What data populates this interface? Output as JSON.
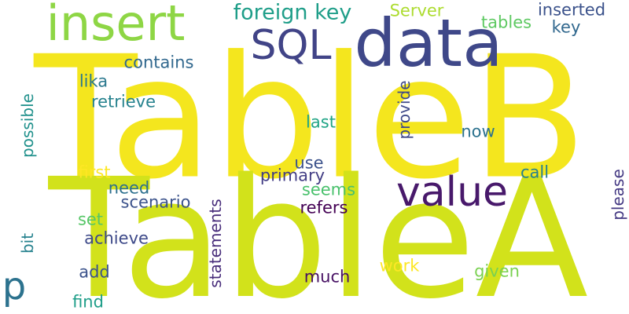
{
  "cloud": {
    "background": "#ffffff",
    "words": [
      {
        "text": "TableB",
        "color": "#f4e61e",
        "orientation": "horizontal"
      },
      {
        "text": "TableA",
        "color": "#d2e21b",
        "orientation": "horizontal"
      },
      {
        "text": "data",
        "color": "#3f4889",
        "orientation": "horizontal"
      },
      {
        "text": "insert",
        "color": "#8ed645",
        "orientation": "horizontal"
      },
      {
        "text": "value",
        "color": "#48196b",
        "orientation": "horizontal"
      },
      {
        "text": "SQL",
        "color": "#414487",
        "orientation": "horizontal"
      },
      {
        "text": "foreign key",
        "color": "#1f9e89",
        "orientation": "horizontal"
      },
      {
        "text": "p",
        "color": "#2c728e",
        "orientation": "horizontal"
      },
      {
        "text": "Server",
        "color": "#addc30",
        "orientation": "horizontal"
      },
      {
        "text": "inserted",
        "color": "#3b528b",
        "orientation": "horizontal"
      },
      {
        "text": "tables",
        "color": "#5ec962",
        "orientation": "horizontal"
      },
      {
        "text": "key",
        "color": "#31688e",
        "orientation": "horizontal"
      },
      {
        "text": "contains",
        "color": "#31688e",
        "orientation": "horizontal"
      },
      {
        "text": "lika",
        "color": "#2a788e",
        "orientation": "horizontal"
      },
      {
        "text": "retrieve",
        "color": "#26828e",
        "orientation": "horizontal"
      },
      {
        "text": "possible",
        "color": "#21918c",
        "orientation": "vertical"
      },
      {
        "text": "provide",
        "color": "#3e4989",
        "orientation": "vertical"
      },
      {
        "text": "last",
        "color": "#20a486",
        "orientation": "horizontal"
      },
      {
        "text": "now",
        "color": "#2c728e",
        "orientation": "horizontal"
      },
      {
        "text": "use",
        "color": "#3b528b",
        "orientation": "horizontal"
      },
      {
        "text": "first",
        "color": "#fde725",
        "orientation": "horizontal"
      },
      {
        "text": "primary",
        "color": "#433e85",
        "orientation": "horizontal"
      },
      {
        "text": "call",
        "color": "#27808e",
        "orientation": "horizontal"
      },
      {
        "text": "please",
        "color": "#443983",
        "orientation": "vertical"
      },
      {
        "text": "need",
        "color": "#2d708e",
        "orientation": "horizontal"
      },
      {
        "text": "seems",
        "color": "#4ac16d",
        "orientation": "horizontal"
      },
      {
        "text": "scenario",
        "color": "#3b528b",
        "orientation": "horizontal"
      },
      {
        "text": "refers",
        "color": "#440154",
        "orientation": "horizontal"
      },
      {
        "text": "set",
        "color": "#56c667",
        "orientation": "horizontal"
      },
      {
        "text": "statements",
        "color": "#472c7a",
        "orientation": "vertical"
      },
      {
        "text": "achieve",
        "color": "#3e4a89",
        "orientation": "horizontal"
      },
      {
        "text": "bit",
        "color": "#26828e",
        "orientation": "vertical"
      },
      {
        "text": "work",
        "color": "#fde725",
        "orientation": "horizontal"
      },
      {
        "text": "add",
        "color": "#3b528b",
        "orientation": "horizontal"
      },
      {
        "text": "much",
        "color": "#471063",
        "orientation": "horizontal"
      },
      {
        "text": "given",
        "color": "#7ad151",
        "orientation": "horizontal"
      },
      {
        "text": "find",
        "color": "#1f9e89",
        "orientation": "horizontal"
      }
    ]
  }
}
